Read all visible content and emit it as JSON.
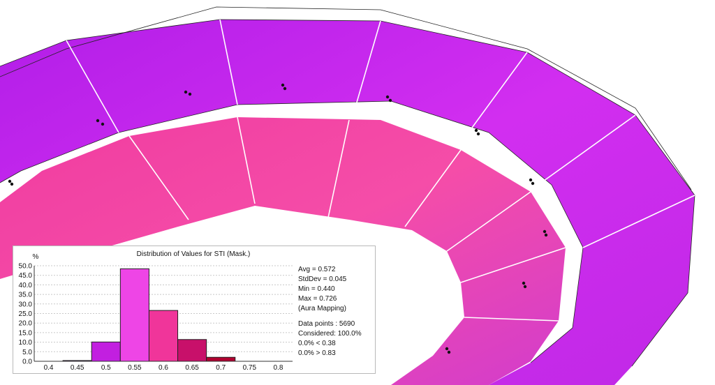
{
  "colors": {
    "ring_purple": "#c522e8",
    "ring_magenta": "#e63fcd",
    "bar_stroke": "#222222",
    "grid": "#c8c8c8"
  },
  "stats": {
    "avg": "Avg = 0.572",
    "stddev": "StdDev = 0.045",
    "min": "Min = 0.440",
    "max": "Max = 0.726",
    "mapping": "(Aura Mapping)",
    "data_points": "Data points : 5690",
    "considered": "Considered: 100.0%",
    "below": "0.0% < 0.38",
    "above": "0.0% > 0.83"
  },
  "chart_data": {
    "type": "bar",
    "title": "Distribution of Values for STI (Mask.)",
    "ylabel": "%",
    "xlabel": "",
    "xlim": [
      0.375,
      0.825
    ],
    "ylim": [
      0,
      50
    ],
    "grid": true,
    "x_ticks": [
      "0.4",
      "0.45",
      "0.5",
      "0.55",
      "0.6",
      "0.65",
      "0.7",
      "0.75",
      "0.8"
    ],
    "y_ticks": [
      "0.0",
      "5.0",
      "10.0",
      "15.0",
      "20.0",
      "25.0",
      "30.0",
      "35.0",
      "40.0",
      "45.0",
      "50.0"
    ],
    "bins": [
      {
        "from": 0.425,
        "to": 0.475,
        "value": 0.4,
        "color": "#7f1fa8"
      },
      {
        "from": 0.475,
        "to": 0.525,
        "value": 10.1,
        "color": "#c21fe0"
      },
      {
        "from": 0.525,
        "to": 0.575,
        "value": 48.4,
        "color": "#ee45e6"
      },
      {
        "from": 0.575,
        "to": 0.625,
        "value": 26.6,
        "color": "#f0359a"
      },
      {
        "from": 0.625,
        "to": 0.675,
        "value": 11.4,
        "color": "#c8106a"
      },
      {
        "from": 0.675,
        "to": 0.725,
        "value": 2.1,
        "color": "#b00030"
      },
      {
        "from": 0.725,
        "to": 0.775,
        "value": 0.0,
        "color": "#b00030"
      }
    ]
  }
}
